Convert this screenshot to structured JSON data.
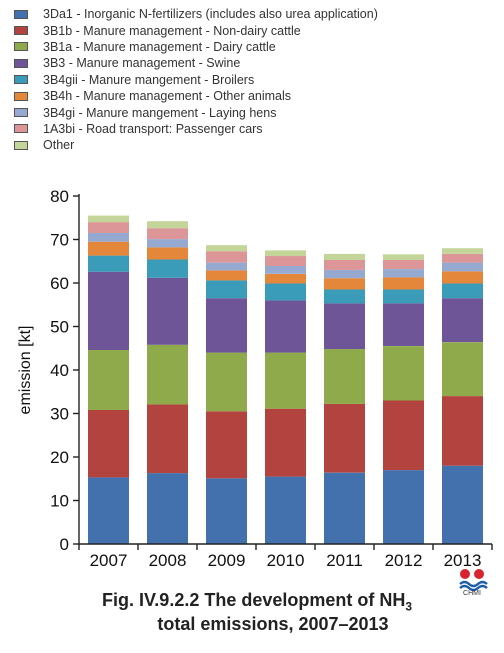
{
  "chart_data": {
    "type": "bar",
    "stacked": true,
    "categories": [
      "2007",
      "2008",
      "2009",
      "2010",
      "2011",
      "2012",
      "2013"
    ],
    "ylabel": "emission [kt]",
    "ylim": [
      0,
      80
    ],
    "yticks": [
      "0",
      "10",
      "20",
      "30",
      "40",
      "50",
      "60",
      "70",
      "80"
    ],
    "legend_position": "top-left",
    "series": [
      {
        "name": "3Da1 - Inorganic N-fertilizers (includes also urea application)",
        "color": "#4271ae",
        "values": [
          15.3,
          16.3,
          15.1,
          15.5,
          16.4,
          17.0,
          18.0
        ]
      },
      {
        "name": "3B1b - Manure management - Non-dairy cattle",
        "color": "#b3433f",
        "values": [
          15.5,
          15.8,
          15.4,
          15.6,
          15.8,
          16.0,
          16.0
        ]
      },
      {
        "name": "3B1a - Manure management - Dairy cattle",
        "color": "#8eaa4a",
        "values": [
          13.8,
          13.7,
          13.5,
          12.9,
          12.6,
          12.5,
          12.4
        ]
      },
      {
        "name": "3B3 - Manure management - Swine",
        "color": "#6d5597",
        "values": [
          18.0,
          15.4,
          12.5,
          12.0,
          10.5,
          9.8,
          10.1
        ]
      },
      {
        "name": "3B4gii - Manure mangement -  Broilers",
        "color": "#3a9cb9",
        "values": [
          3.7,
          4.2,
          4.1,
          3.9,
          3.2,
          3.2,
          3.4
        ]
      },
      {
        "name": "3B4h - Manure management - Other animals",
        "color": "#e5873a",
        "values": [
          3.2,
          2.8,
          2.3,
          2.2,
          2.6,
          2.8,
          2.8
        ]
      },
      {
        "name": "3B4gi - Manure mangement -  Laying hens",
        "color": "#96a9d0",
        "values": [
          2.0,
          1.9,
          1.8,
          1.8,
          1.9,
          1.9,
          2.0
        ]
      },
      {
        "name": "1A3bi - Road transport: Passenger cars",
        "color": "#dc9697",
        "values": [
          2.5,
          2.5,
          2.6,
          2.3,
          2.3,
          2.1,
          2.0
        ]
      },
      {
        "name": "Other",
        "color": "#c4d59a",
        "values": [
          1.5,
          1.6,
          1.4,
          1.3,
          1.4,
          1.3,
          1.3
        ]
      }
    ]
  },
  "caption": {
    "line1": "Fig. IV.9.2.2  The development of NH",
    "subscript": "3",
    "line2": "total emissions, 2007–2013"
  },
  "logo": {
    "text": "CHMI"
  }
}
